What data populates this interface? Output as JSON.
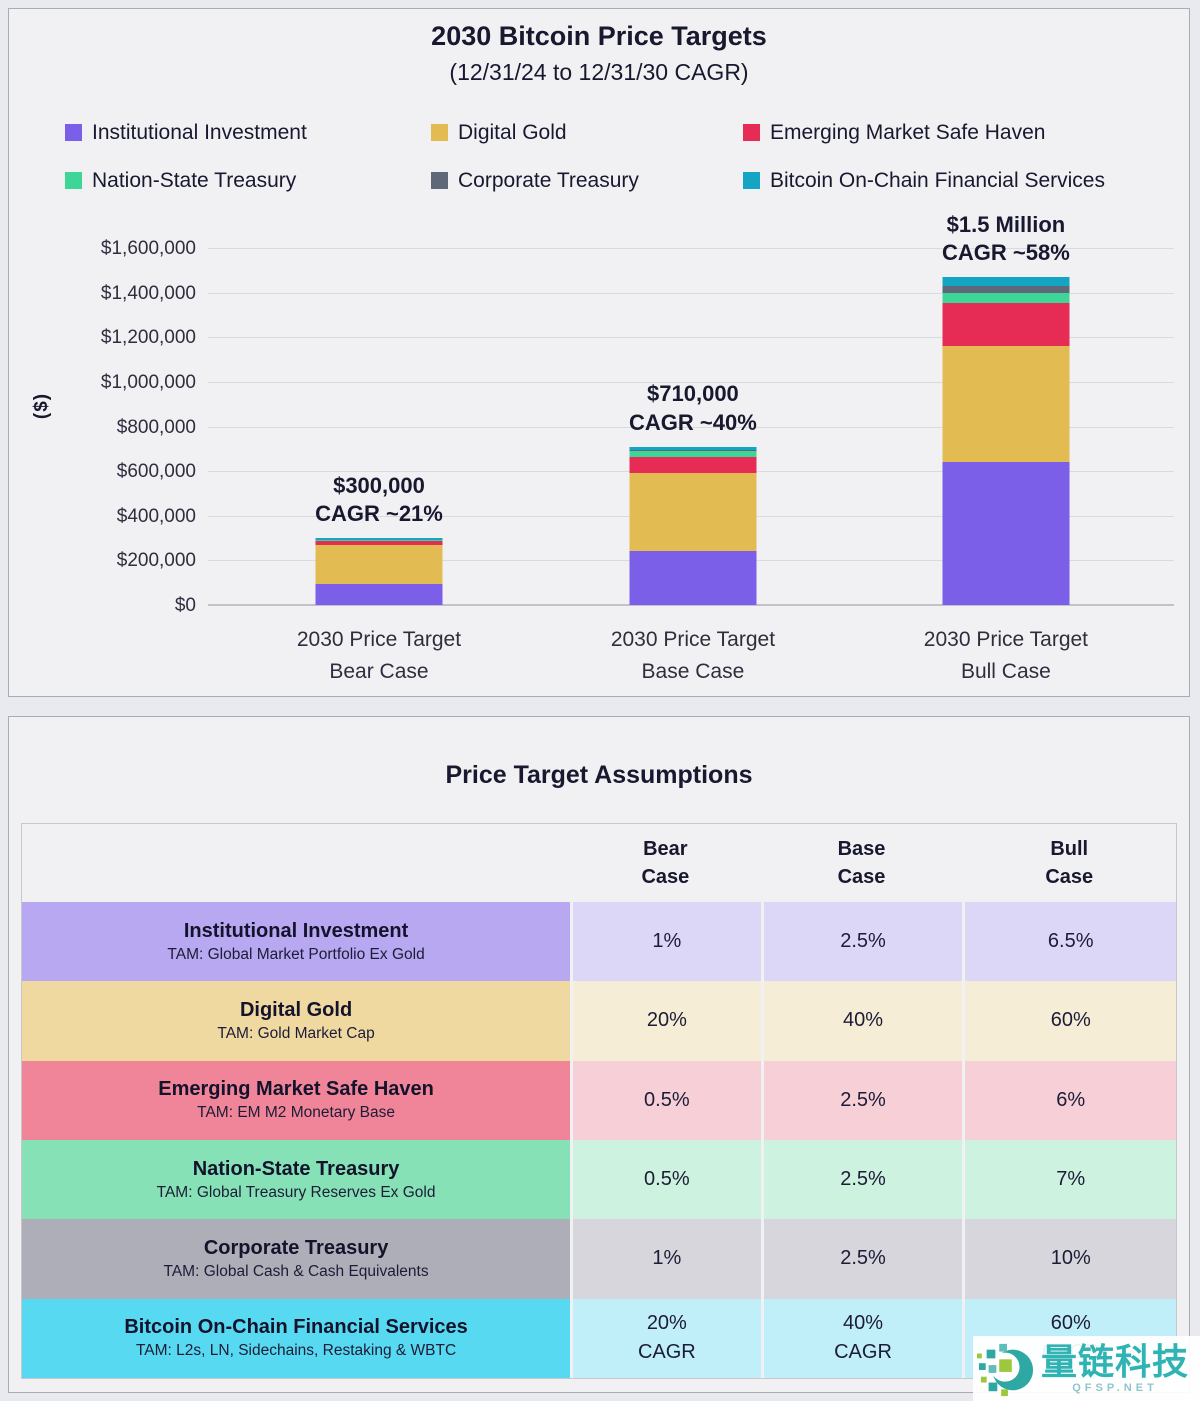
{
  "chart_panel": {
    "title": "2030 Bitcoin Price Targets",
    "subtitle": "(12/31/24 to 12/31/30 CAGR)",
    "y_axis_label": "($)"
  },
  "chart_data": {
    "type": "bar",
    "stacked": true,
    "grid": true,
    "legend_position": "top",
    "title": "2030 Bitcoin Price Targets",
    "subtitle": "(12/31/24 to 12/31/30 CAGR)",
    "ylabel": "($)",
    "ylim": [
      0,
      1600000
    ],
    "ytick_values": [
      0,
      200000,
      400000,
      600000,
      800000,
      1000000,
      1200000,
      1400000,
      1600000
    ],
    "ytick_labels": [
      "$0",
      "$200,000",
      "$400,000",
      "$600,000",
      "$800,000",
      "$1,000,000",
      "$1,200,000",
      "$1,400,000",
      "$1,600,000"
    ],
    "categories": [
      "2030 Price Target\nBear Case",
      "2030 Price Target\nBase Case",
      "2030 Price Target\nBull Case"
    ],
    "series": [
      {
        "name": "Institutional Investment",
        "color": "#7B5FE8",
        "values": [
          95000,
          240000,
          640000
        ]
      },
      {
        "name": "Digital Gold",
        "color": "#E2BC52",
        "values": [
          172000,
          350000,
          520000
        ]
      },
      {
        "name": "Emerging Market Safe Haven",
        "color": "#E62B55",
        "values": [
          20000,
          75000,
          195000
        ]
      },
      {
        "name": "Nation-State Treasury",
        "color": "#3DD598",
        "values": [
          3000,
          25000,
          42000
        ]
      },
      {
        "name": "Corporate Treasury",
        "color": "#5E6876",
        "values": [
          2000,
          5000,
          33000
        ]
      },
      {
        "name": "Bitcoin On-Chain Financial Services",
        "color": "#14A5C4",
        "values": [
          8000,
          15000,
          40000
        ]
      }
    ],
    "totals": [
      300000,
      710000,
      1470000
    ],
    "annotations": [
      [
        "$300,000",
        "CAGR ~21%"
      ],
      [
        "$710,000",
        "CAGR ~40%"
      ],
      [
        "$1.5 Million",
        "CAGR ~58%"
      ]
    ]
  },
  "assumptions": {
    "title": "Price Target Assumptions",
    "columns": [
      "Bear\nCase",
      "Base\nCase",
      "Bull\nCase"
    ],
    "rows": [
      {
        "name": "Institutional Investment",
        "tam": "TAM: Global Market Portfolio Ex Gold",
        "bear": "1%",
        "base": "2.5%",
        "bull": "6.5%",
        "label_bg": "#B7A8F1",
        "cell_bg": "#DDD7F7"
      },
      {
        "name": "Digital Gold",
        "tam": "TAM: Gold Market Cap",
        "bear": "20%",
        "base": "40%",
        "bull": "60%",
        "label_bg": "#EFD9A1",
        "cell_bg": "#F6EDD7"
      },
      {
        "name": "Emerging Market Safe Haven",
        "tam": "TAM: EM M2 Monetary Base",
        "bear": "0.5%",
        "base": "2.5%",
        "bull": "6%",
        "label_bg": "#F08499",
        "cell_bg": "#F6CFD7"
      },
      {
        "name": "Nation-State Treasury",
        "tam": "TAM: Global Treasury Reserves Ex Gold",
        "bear": "0.5%",
        "base": "2.5%",
        "bull": "7%",
        "label_bg": "#86E2B6",
        "cell_bg": "#CDF2E0"
      },
      {
        "name": "Corporate Treasury",
        "tam": "TAM: Global Cash & Cash Equivalents",
        "bear": "1%",
        "base": "2.5%",
        "bull": "10%",
        "label_bg": "#AEAEB8",
        "cell_bg": "#D6D6DC"
      },
      {
        "name": "Bitcoin On-Chain Financial Services",
        "tam": "TAM: L2s, LN, Sidechains, Restaking & WBTC",
        "bear": "20%\nCAGR",
        "base": "40%\nCAGR",
        "bull": "60%\nCAGR",
        "label_bg": "#58D9F2",
        "cell_bg": "#C0EEF9"
      }
    ]
  },
  "watermark": {
    "brand": "量链科技",
    "site": "QFSP.NET",
    "brand_color": "#2FB3B3"
  }
}
